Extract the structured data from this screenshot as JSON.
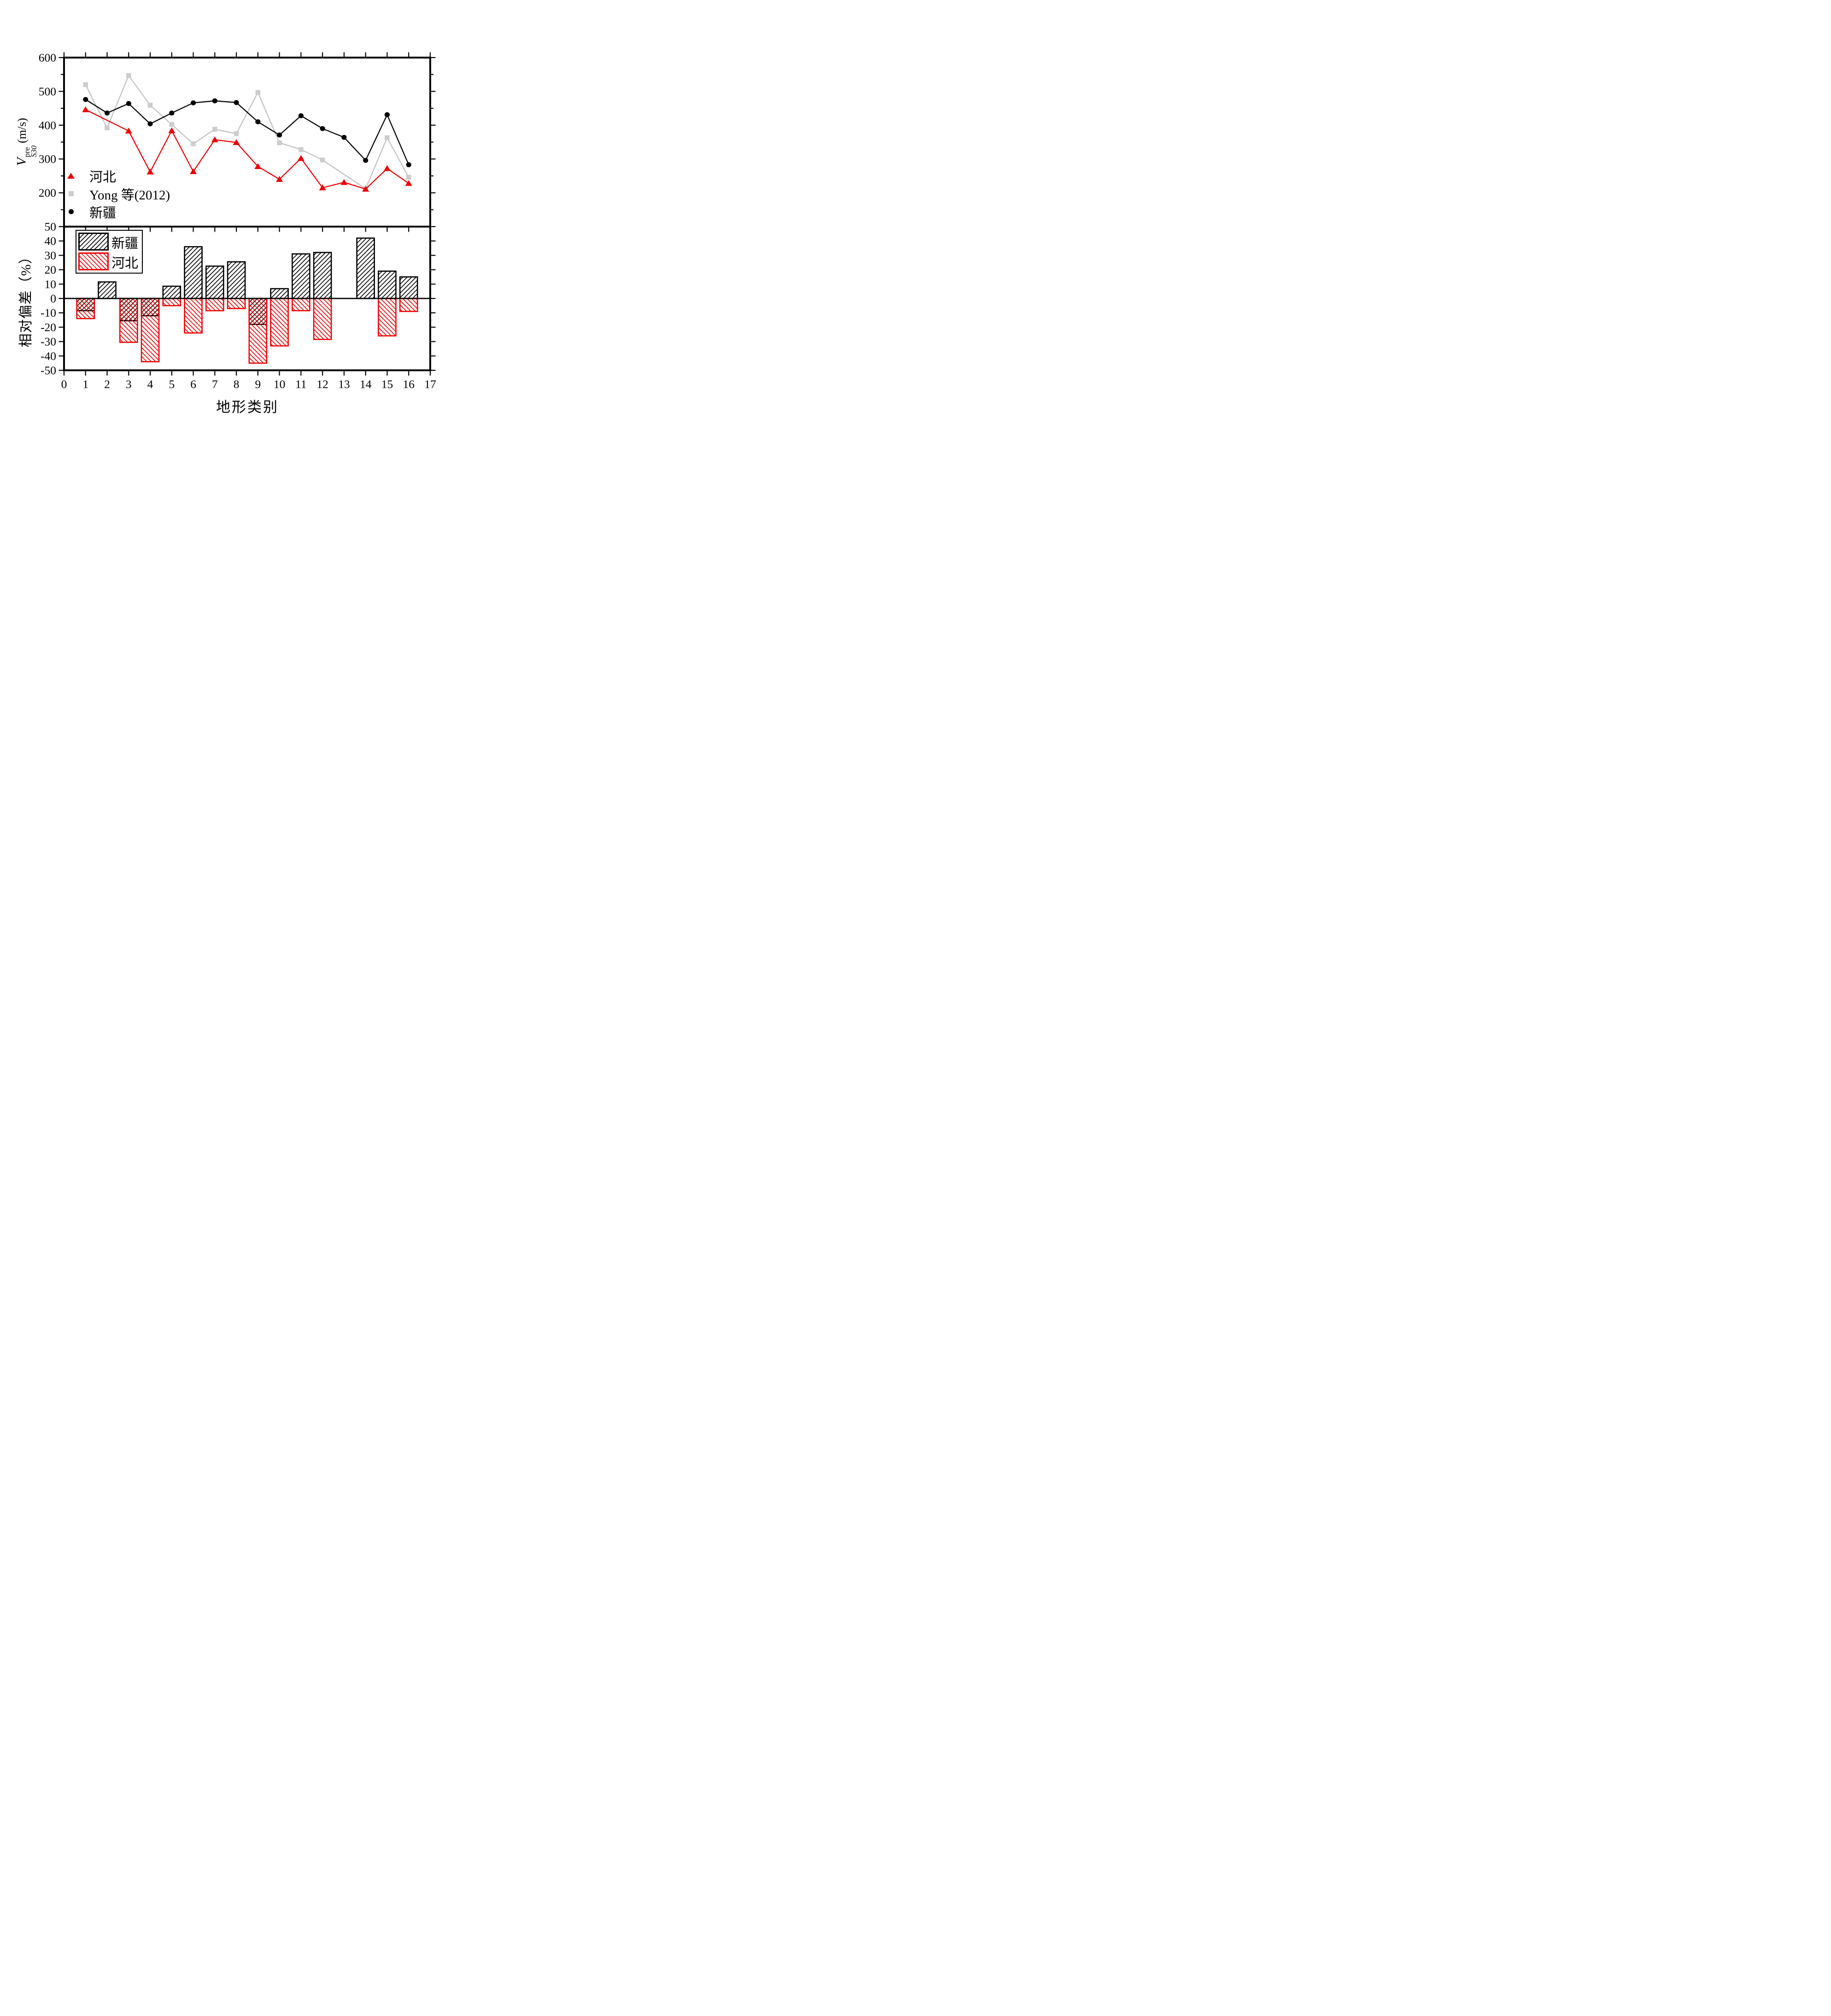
{
  "xlabel": "地形类别",
  "x_ticks": [
    0,
    1,
    2,
    3,
    4,
    5,
    6,
    7,
    8,
    9,
    10,
    11,
    12,
    13,
    14,
    15,
    16,
    17
  ],
  "colors": {
    "hebei_red": "#ee0000",
    "yong_gray_line": "#c2c2c2",
    "yong_gray_fill": "#cdcdcd",
    "xinjiang_black": "#000000",
    "background": "#ffffff"
  },
  "chart_data": [
    {
      "panel": "top",
      "type": "line",
      "ylabel": {
        "variable": "V",
        "subscript": "S30",
        "superscript": "pre",
        "unit": "(m/s)"
      },
      "ylim": [
        100,
        600
      ],
      "yticks": [
        200,
        300,
        400,
        500,
        600
      ],
      "yticks_minor": [
        150,
        250,
        350,
        450,
        550
      ],
      "xlim": [
        0,
        17
      ],
      "grid": false,
      "legend_position": "lower-left",
      "categories": [
        1,
        2,
        3,
        4,
        5,
        6,
        7,
        8,
        9,
        10,
        11,
        12,
        13,
        14,
        15,
        16
      ],
      "series": [
        {
          "name": "河北",
          "marker": "triangle",
          "color": "#ee0000",
          "values": [
            446,
            null,
            383,
            262,
            384,
            263,
            357,
            349,
            278,
            240,
            302,
            215,
            231,
            211,
            272,
            228
          ]
        },
        {
          "name": "Yong 等(2012)",
          "marker": "square",
          "color": "#cdcdcd",
          "line_color": "#c2c2c2",
          "values": [
            520,
            392,
            547,
            459,
            402,
            345,
            388,
            375,
            497,
            348,
            328,
            297,
            null,
            212,
            363,
            246
          ]
        },
        {
          "name": "新疆",
          "marker": "circle",
          "color": "#000000",
          "values": [
            476,
            436,
            464,
            404,
            436,
            466,
            472,
            467,
            410,
            371,
            428,
            390,
            364,
            296,
            431,
            283
          ]
        }
      ]
    },
    {
      "panel": "bottom",
      "type": "bar",
      "ylabel": "相对偏差（%）",
      "ylim": [
        -50,
        50
      ],
      "yticks": [
        50,
        40,
        30,
        20,
        10,
        0,
        -10,
        -20,
        -30,
        -40,
        -50
      ],
      "xlim": [
        0,
        17
      ],
      "grid": false,
      "legend_position": "upper-left",
      "categories": [
        1,
        2,
        3,
        4,
        5,
        6,
        7,
        8,
        9,
        10,
        11,
        12,
        13,
        14,
        15,
        16
      ],
      "series": [
        {
          "name": "新疆",
          "hatch": "/",
          "color": "#000000",
          "values": [
            -8.5,
            11.5,
            -15.5,
            -12,
            8.5,
            36,
            22.5,
            25.5,
            -18,
            6.8,
            31,
            32,
            null,
            42,
            19,
            15
          ]
        },
        {
          "name": "河北",
          "hatch": "\\",
          "color": "#ee0000",
          "values": [
            -14,
            null,
            -30.5,
            -44,
            -5,
            -24,
            -8.5,
            -7,
            -45,
            -33,
            -8.5,
            -28.5,
            null,
            null,
            -26,
            -9
          ]
        }
      ]
    }
  ]
}
